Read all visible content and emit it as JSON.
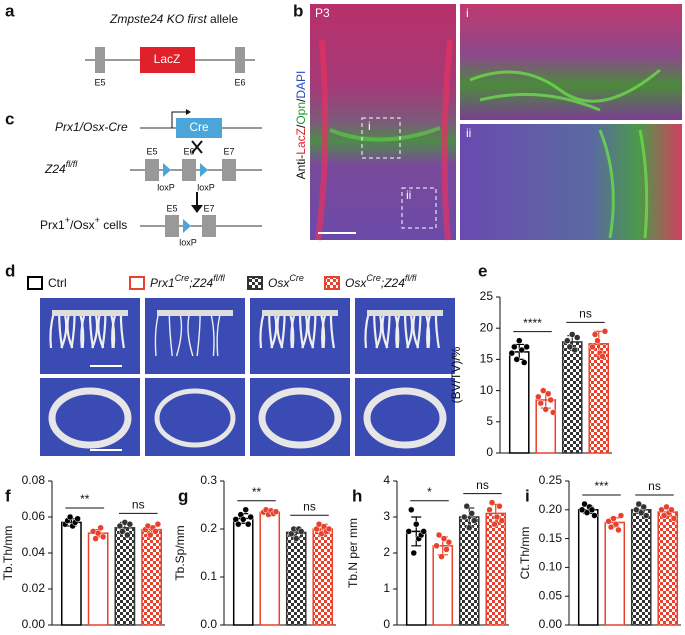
{
  "figure": {
    "panel_labels": [
      "a",
      "b",
      "c",
      "d",
      "e",
      "f",
      "g",
      "h",
      "i"
    ],
    "a": {
      "title": [
        "Zmpste24 KO first",
        " allele"
      ],
      "cassette": "LacZ",
      "exons": [
        "E5",
        "E6"
      ]
    },
    "b": {
      "stage": "P3",
      "stain": [
        "Anti-",
        "LacZ",
        "/",
        "Opn",
        "/",
        "DAPI"
      ],
      "insets": [
        "i",
        "ii"
      ]
    },
    "c": {
      "driver": "Prx1/Osx-Cre",
      "cre": "Cre",
      "allele": [
        "Z24",
        "fl/fl"
      ],
      "exons": [
        "E5",
        "E6",
        "E7"
      ],
      "lox": [
        "loxP",
        "loxP"
      ],
      "result": [
        "Prx1",
        "+",
        "/Osx",
        "+",
        " cells"
      ],
      "result_exons": [
        "E5",
        "E7"
      ],
      "result_lox": "loxP"
    },
    "d": {
      "legend": [
        [
          "Ctrl"
        ],
        [
          "Prx1",
          "Cre",
          ";Z24",
          "fl/fl"
        ],
        [
          "Osx",
          "Cre"
        ],
        [
          "Osx",
          "Cre",
          ";Z24",
          "fl/fl"
        ]
      ]
    }
  },
  "chart_data": [
    {
      "type": "bar",
      "ylabel": "(BV/TV)/%",
      "categories": [
        null,
        null,
        null,
        null
      ],
      "values": [
        16.2,
        8.5,
        17.8,
        17.5
      ],
      "errors": [
        1.2,
        1.3,
        1,
        2
      ],
      "points": [
        [
          16,
          17,
          15,
          18,
          16.5,
          14.5,
          17
        ],
        [
          9,
          8,
          10,
          7,
          9.5,
          8.5,
          6.5
        ],
        [
          18,
          17,
          19,
          16.5,
          18.5
        ],
        [
          17,
          19,
          18,
          16,
          15.5,
          19.5
        ]
      ],
      "colors": [
        "#000000",
        "#e8412c",
        "#333333",
        "#e8412c"
      ],
      "checkered": [
        false,
        false,
        true,
        true
      ],
      "comparisons": [
        {
          "label": "****",
          "groups": [
            0,
            1
          ]
        },
        {
          "label": "ns",
          "groups": [
            2,
            3
          ]
        }
      ],
      "ylim": [
        0,
        25
      ],
      "yticks": [
        0,
        5,
        10,
        15,
        20,
        25
      ]
    },
    {
      "type": "bar",
      "ylabel": "Tb.Th/mm",
      "categories": [
        null,
        null,
        null,
        null
      ],
      "values": [
        0.057,
        0.051,
        0.054,
        0.053
      ],
      "errors": [
        0.002,
        0.002,
        0.003,
        0.002
      ],
      "points": [
        [
          0.056,
          0.058,
          0.06,
          0.055,
          0.057,
          0.059
        ],
        [
          0.052,
          0.048,
          0.051,
          0.054,
          0.049
        ],
        [
          0.055,
          0.052,
          0.057,
          0.05,
          0.056
        ],
        [
          0.053,
          0.055,
          0.05,
          0.054,
          0.052,
          0.056
        ]
      ],
      "colors": [
        "#000000",
        "#e8412c",
        "#333333",
        "#e8412c"
      ],
      "checkered": [
        false,
        false,
        true,
        true
      ],
      "comparisons": [
        {
          "label": "**",
          "groups": [
            0,
            1
          ]
        },
        {
          "label": "ns",
          "groups": [
            2,
            3
          ]
        }
      ],
      "ylim": [
        0,
        0.08
      ],
      "yticks": [
        {
          "value": 0,
          "label": "0.00"
        },
        0.02,
        0.04,
        0.06,
        0.08
      ]
    },
    {
      "type": "bar",
      "ylabel": "Tb.Sp/mm",
      "categories": [
        null,
        null,
        null,
        null
      ],
      "values": [
        0.222,
        0.235,
        0.193,
        0.2
      ],
      "errors": [
        0.01,
        0.004,
        0.01,
        0.01
      ],
      "points": [
        [
          0.22,
          0.21,
          0.23,
          0.22,
          0.24,
          0.21,
          0.225
        ],
        [
          0.235,
          0.24,
          0.23,
          0.238,
          0.232,
          0.236
        ],
        [
          0.19,
          0.2,
          0.18,
          0.2,
          0.195
        ],
        [
          0.2,
          0.21,
          0.19,
          0.205,
          0.195,
          0.2
        ]
      ],
      "colors": [
        "#000000",
        "#e8412c",
        "#333333",
        "#e8412c"
      ],
      "checkered": [
        false,
        false,
        true,
        true
      ],
      "comparisons": [
        {
          "label": "**",
          "groups": [
            0,
            1
          ]
        },
        {
          "label": "ns",
          "groups": [
            2,
            3
          ]
        }
      ],
      "ylim": [
        0,
        0.3
      ],
      "yticks": [
        {
          "value": 0,
          "label": "0.0"
        },
        0.1,
        0.2,
        0.3
      ]
    },
    {
      "type": "bar",
      "ylabel": "Tb.N per mm",
      "categories": [
        null,
        null,
        null,
        null
      ],
      "values": [
        2.6,
        2.2,
        3.0,
        3.1
      ],
      "errors": [
        0.4,
        0.25,
        0.25,
        0.25
      ],
      "points": [
        [
          2.6,
          3.2,
          2.0,
          2.8,
          2.4,
          2.5,
          2.6
        ],
        [
          2.2,
          2.5,
          1.9,
          2.4,
          2.1,
          2.3
        ],
        [
          3.0,
          3.3,
          2.7,
          3.1,
          2.9
        ],
        [
          3.2,
          3.4,
          2.8,
          3.0,
          3.3,
          2.9
        ]
      ],
      "colors": [
        "#000000",
        "#e8412c",
        "#333333",
        "#e8412c"
      ],
      "checkered": [
        false,
        false,
        true,
        true
      ],
      "comparisons": [
        {
          "label": "*",
          "groups": [
            0,
            1
          ]
        },
        {
          "label": "ns",
          "groups": [
            2,
            3
          ]
        }
      ],
      "ylim": [
        0,
        4
      ],
      "yticks": [
        0,
        1,
        2,
        3,
        4
      ]
    },
    {
      "type": "bar",
      "ylabel": "Ct.Th/mm",
      "categories": [
        null,
        null,
        null,
        null
      ],
      "values": [
        0.2,
        0.178,
        0.2,
        0.196
      ],
      "errors": [
        0.006,
        0.008,
        0.006,
        0.007
      ],
      "points": [
        [
          0.2,
          0.21,
          0.195,
          0.205,
          0.2,
          0.19
        ],
        [
          0.18,
          0.17,
          0.185,
          0.175,
          0.165,
          0.19
        ],
        [
          0.2,
          0.21,
          0.195,
          0.205,
          0.19
        ],
        [
          0.2,
          0.19,
          0.205,
          0.195,
          0.2,
          0.185
        ]
      ],
      "colors": [
        "#000000",
        "#e8412c",
        "#333333",
        "#e8412c"
      ],
      "checkered": [
        false,
        false,
        true,
        true
      ],
      "comparisons": [
        {
          "label": "***",
          "groups": [
            0,
            1
          ]
        },
        {
          "label": "ns",
          "groups": [
            2,
            3
          ]
        }
      ],
      "ylim": [
        0,
        0.25
      ],
      "yticks": [
        {
          "value": 0,
          "label": "0.00"
        },
        0.05,
        {
          "value": 0.1,
          "label": "0.10"
        },
        0.15,
        {
          "value": 0.2,
          "label": "0.20"
        },
        0.25
      ]
    }
  ]
}
